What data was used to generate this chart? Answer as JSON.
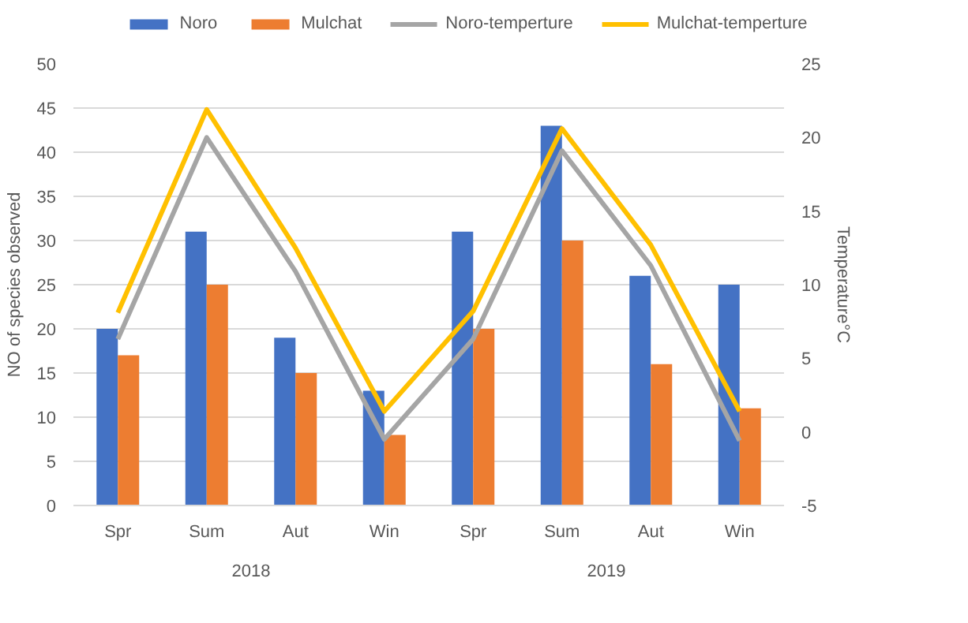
{
  "chart_data": {
    "type": "bar",
    "categories": [
      "Spr",
      "Sum",
      "Aut",
      "Win",
      "Spr",
      "Sum",
      "Aut",
      "Win"
    ],
    "series": [
      {
        "name": "Noro",
        "color": "#4472c4",
        "values": [
          20,
          31,
          19,
          13,
          31,
          43,
          26,
          25
        ]
      },
      {
        "name": "Mulchat",
        "color": "#ed7d31",
        "values": [
          17,
          25,
          15,
          8,
          20,
          30,
          16,
          11
        ]
      },
      {
        "name": "Noro-temperture",
        "type": "line",
        "axis": "y2",
        "color": "#a5a5a5",
        "values": [
          6.3,
          20.0,
          10.9,
          -0.5,
          6.3,
          19.1,
          11.3,
          -0.6
        ]
      },
      {
        "name": "Mulchat-temperture",
        "type": "line",
        "axis": "y2",
        "color": "#ffc000",
        "values": [
          8.1,
          21.9,
          12.5,
          1.4,
          8.2,
          20.6,
          12.7,
          1.4
        ]
      }
    ],
    "annotations": [
      "2018",
      "2019"
    ],
    "ylabel": "NO of species observed",
    "y2label": "Temperature°C",
    "ylim": [
      0,
      50
    ],
    "yticks": [
      0,
      5,
      10,
      15,
      20,
      25,
      30,
      35,
      40,
      45,
      50
    ],
    "y2lim": [
      -5,
      25
    ],
    "y2ticks": [
      -5,
      0,
      5,
      10,
      15,
      20,
      25
    ],
    "grid": "y",
    "legend": "top"
  }
}
